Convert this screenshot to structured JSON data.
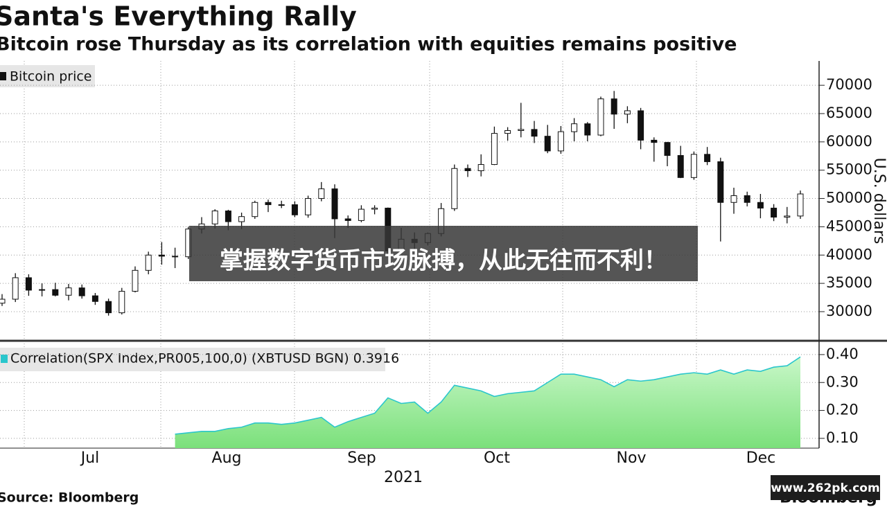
{
  "chart_data": [
    {
      "type": "candlestick",
      "title": "Santa's Everything Rally",
      "subtitle": "Bitcoin rose Thursday as its correlation with equities remains positive",
      "legend": "Bitcoin price",
      "y_label": "U.S. dollars",
      "color": "#111111",
      "grid": true,
      "open": [
        31500,
        32200,
        36000,
        33800,
        33900,
        32900,
        34200,
        32800,
        31800,
        29800,
        33600,
        37300,
        40000,
        39800,
        39700,
        44600,
        45500,
        47800,
        45900,
        46800,
        49300,
        48900,
        48900,
        47100,
        50000,
        51700,
        46400,
        46100,
        48100,
        48300,
        40700,
        42800,
        42200,
        43800,
        48200,
        55300,
        54900,
        56000,
        61500,
        62000,
        62200,
        61000,
        58400,
        61800,
        63200,
        61200,
        67600,
        64900,
        65500,
        60300,
        59900,
        57600,
        53700,
        57800,
        56500,
        49300,
        50500,
        49300,
        48300,
        46700,
        46900
      ],
      "high": [
        33100,
        36800,
        36600,
        35000,
        35100,
        34900,
        34800,
        33300,
        32300,
        34200,
        38000,
        40600,
        42300,
        41300,
        45000,
        46700,
        48100,
        48000,
        47500,
        49600,
        49800,
        49600,
        49500,
        50500,
        52900,
        52500,
        47000,
        48800,
        48800,
        48400,
        44800,
        44000,
        44000,
        49200,
        56000,
        56000,
        57800,
        62700,
        62600,
        66900,
        63700,
        63000,
        62800,
        64200,
        63500,
        68000,
        69000,
        66300,
        66000,
        60800,
        60000,
        59300,
        58300,
        59100,
        57200,
        51900,
        51200,
        50800,
        49000,
        48500,
        51400
      ],
      "low": [
        31000,
        31700,
        32800,
        32700,
        32700,
        32000,
        32300,
        31200,
        29300,
        29500,
        33400,
        36600,
        38300,
        37700,
        39300,
        43800,
        44700,
        44400,
        44600,
        46400,
        47600,
        48300,
        46700,
        46600,
        49500,
        43000,
        44800,
        45800,
        47200,
        39800,
        40200,
        41000,
        41700,
        43300,
        47800,
        53800,
        53900,
        55900,
        60200,
        60800,
        59800,
        58000,
        57900,
        60100,
        60100,
        61000,
        62300,
        63300,
        58700,
        56500,
        55700,
        53600,
        53300,
        55900,
        42400,
        47300,
        48600,
        46500,
        46000,
        45600,
        46400
      ],
      "close": [
        32200,
        36000,
        33800,
        33900,
        32900,
        34200,
        32800,
        31800,
        29800,
        33600,
        37300,
        40000,
        39800,
        39700,
        44600,
        45500,
        47800,
        45900,
        46800,
        49300,
        48900,
        48900,
        47100,
        50000,
        51700,
        46400,
        46100,
        48100,
        48300,
        40700,
        42800,
        42200,
        43800,
        48200,
        55300,
        54900,
        56000,
        61500,
        62000,
        62200,
        61000,
        58400,
        61800,
        63200,
        61200,
        67600,
        64900,
        65500,
        60300,
        59900,
        57600,
        53700,
        57800,
        56500,
        49300,
        50500,
        49300,
        48300,
        46700,
        46900,
        50800
      ],
      "ylim": [
        25100,
        74300
      ],
      "yticks": [
        30000,
        35000,
        40000,
        45000,
        50000,
        55000,
        60000,
        65000,
        70000
      ]
    },
    {
      "type": "area",
      "series": [
        {
          "name": "Correlation(SPX Index,PR005,100,0) (XBTUSD BGN) 0.3916",
          "color": "#2ac6cc",
          "values": [
            null,
            null,
            null,
            null,
            null,
            null,
            null,
            null,
            null,
            null,
            null,
            null,
            null,
            0.115,
            0.12,
            0.125,
            0.125,
            0.135,
            0.14,
            0.155,
            0.155,
            0.15,
            0.155,
            0.165,
            0.175,
            0.14,
            0.16,
            0.175,
            0.19,
            0.245,
            0.225,
            0.23,
            0.19,
            0.23,
            0.29,
            0.28,
            0.27,
            0.25,
            0.26,
            0.265,
            0.27,
            0.3,
            0.33,
            0.33,
            0.32,
            0.31,
            0.285,
            0.31,
            0.305,
            0.31,
            0.32,
            0.33,
            0.335,
            0.33,
            0.345,
            0.33,
            0.345,
            0.34,
            0.355,
            0.36,
            0.3916
          ]
        }
      ],
      "grid": true,
      "ylim": [
        0.065,
        0.442
      ],
      "yticks": [
        {
          "value": 0.1,
          "label": "0.10"
        },
        {
          "value": 0.2,
          "label": "0.20"
        },
        {
          "value": 0.3,
          "label": "0.30"
        },
        {
          "value": 0.4,
          "label": "0.40"
        }
      ],
      "x_labels": [
        "Jul",
        "Aug",
        "Sep",
        "Oct",
        "Nov",
        "Dec"
      ],
      "x_year": "2021"
    }
  ],
  "footer": {
    "source": "Source: Bloomberg",
    "logo": "Bloomberg"
  },
  "overlay": {
    "banner": "掌握数字货币市场脉搏，从此无往而不利！",
    "watermark": "www.262pk.com"
  }
}
